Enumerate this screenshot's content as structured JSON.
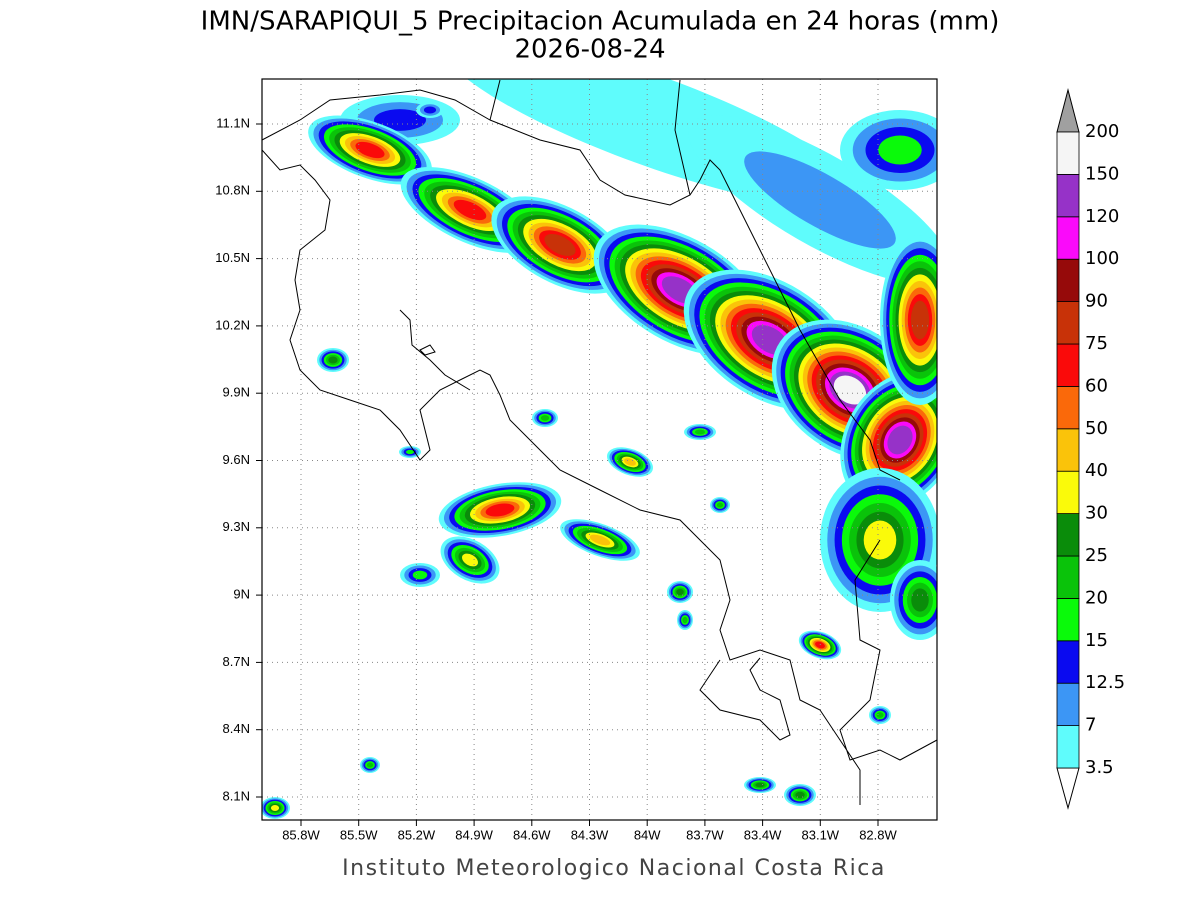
{
  "header": {
    "title": "IMN/SARAPIQUI_5 Precipitacion Acumulada en 24 horas (mm)",
    "subtitle": "2026-08-24"
  },
  "map": {
    "lon_ticks": [
      "85.8W",
      "85.5W",
      "85.2W",
      "84.9W",
      "84.6W",
      "84.3W",
      "84W",
      "83.7W",
      "83.4W",
      "83.1W",
      "82.8W"
    ],
    "lat_ticks": [
      "11.1N",
      "10.8N",
      "10.5N",
      "10.2N",
      "9.9N",
      "9.6N",
      "9.3N",
      "9N",
      "8.7N",
      "8.4N",
      "8.1N"
    ]
  },
  "colorbar": {
    "levels": [
      3.5,
      7,
      12.5,
      15,
      20,
      25,
      30,
      40,
      50,
      60,
      75,
      90,
      100,
      120,
      150,
      200
    ],
    "colors": [
      "#5ffcfc",
      "#3c96f5",
      "#0a0af0",
      "#0afa0a",
      "#0ac30a",
      "#0a8c0a",
      "#fafa0a",
      "#fac30a",
      "#fa690a",
      "#fa0a0a",
      "#c83208",
      "#960a0a",
      "#fa0afa",
      "#9632c8",
      "#f5f5f5"
    ],
    "under_color": "#ffffff",
    "over_color": "#a0a0a0"
  },
  "footer": {
    "text": "Instituto Meteorologico Nacional Costa Rica"
  }
}
